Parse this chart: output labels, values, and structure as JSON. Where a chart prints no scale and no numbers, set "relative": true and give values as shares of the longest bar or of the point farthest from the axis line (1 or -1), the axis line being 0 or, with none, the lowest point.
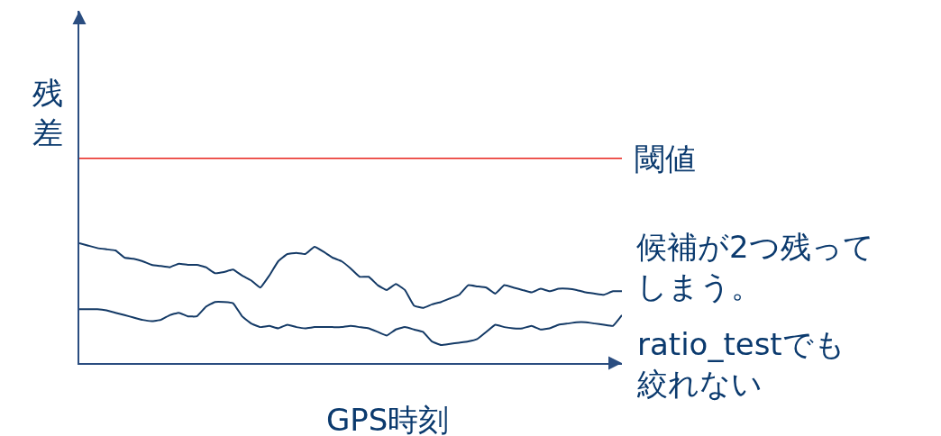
{
  "chart_data": {
    "type": "line",
    "relative": true,
    "xlabel": "GPS時刻",
    "ylabel": "残差",
    "categories": [
      null,
      null,
      null,
      null,
      null,
      null,
      null,
      null,
      null,
      null,
      null,
      null,
      null,
      null,
      null,
      null,
      null,
      null,
      null,
      null,
      null,
      null,
      null,
      null,
      null,
      null,
      null,
      null,
      null,
      null,
      null,
      null,
      null,
      null,
      null,
      null,
      null,
      null,
      null,
      null,
      null,
      null,
      null,
      null,
      null,
      null,
      null,
      null,
      null,
      null,
      null,
      null,
      null,
      null,
      null,
      null,
      null,
      null,
      null,
      null,
      null
    ],
    "series": [
      {
        "color": "#143a66",
        "values": [
          1.0,
          0.98,
          0.96,
          0.95,
          0.94,
          0.88,
          0.87,
          0.85,
          0.82,
          0.81,
          0.8,
          0.83,
          0.82,
          0.82,
          0.8,
          0.75,
          0.76,
          0.78,
          0.73,
          0.69,
          0.63,
          0.73,
          0.85,
          0.91,
          0.92,
          0.91,
          0.97,
          0.93,
          0.88,
          0.85,
          0.79,
          0.72,
          0.72,
          0.65,
          0.61,
          0.66,
          0.61,
          0.48,
          0.46,
          0.49,
          0.51,
          0.54,
          0.57,
          0.65,
          0.64,
          0.63,
          0.58,
          0.65,
          0.63,
          0.61,
          0.59,
          0.62,
          0.6,
          0.62,
          0.62,
          0.61,
          0.59,
          0.58,
          0.57,
          0.6,
          0.6
        ]
      },
      {
        "color": "#143a66",
        "values": [
          0.45,
          0.45,
          0.45,
          0.44,
          0.42,
          0.4,
          0.38,
          0.36,
          0.35,
          0.36,
          0.4,
          0.42,
          0.39,
          0.39,
          0.47,
          0.51,
          0.51,
          0.5,
          0.39,
          0.33,
          0.3,
          0.31,
          0.29,
          0.32,
          0.3,
          0.29,
          0.3,
          0.3,
          0.3,
          0.3,
          0.31,
          0.3,
          0.29,
          0.26,
          0.23,
          0.28,
          0.3,
          0.28,
          0.26,
          0.18,
          0.15,
          0.16,
          0.17,
          0.18,
          0.2,
          0.26,
          0.32,
          0.3,
          0.29,
          0.29,
          0.31,
          0.28,
          0.29,
          0.32,
          0.33,
          0.34,
          0.34,
          0.33,
          0.32,
          0.31,
          0.4
        ]
      }
    ],
    "ref_lines": [
      {
        "axis": "y",
        "value": 1.71,
        "label": "閾値",
        "color": "#e8231b"
      }
    ],
    "annotations": [
      "候補が2つ残ってしまう。",
      "ratio_testでも絞れない"
    ],
    "tick_labels": false,
    "marker": "none",
    "line_style": "solid"
  }
}
